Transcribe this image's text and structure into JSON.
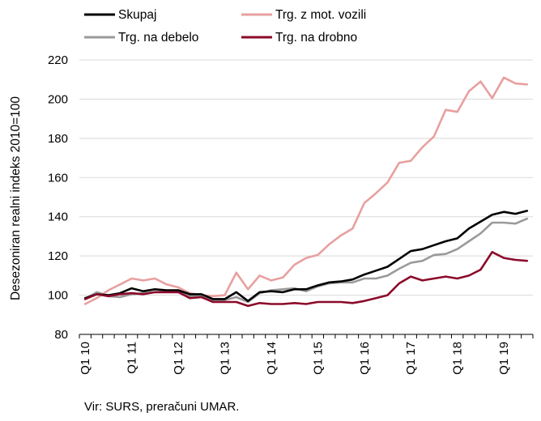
{
  "chart_data": {
    "type": "line",
    "ylabel": "Desezoniran realni indeks 2010=100",
    "source": "Vir: SURS, preračuni UMAR.",
    "ylim": [
      80,
      220
    ],
    "yticks": [
      80,
      100,
      120,
      140,
      160,
      180,
      200,
      220
    ],
    "xtick_labels": [
      "Q1 10",
      "Q1 11",
      "Q1 12",
      "Q1 13",
      "Q1 14",
      "Q1 15",
      "Q1 16",
      "Q1 17",
      "Q1 18",
      "Q1 19"
    ],
    "grid": "horizontal",
    "legend_position": "top",
    "series": [
      {
        "name": "Skupaj",
        "color": "#000000",
        "values": [
          98.5,
          100.5,
          100.0,
          101.0,
          103.5,
          102.0,
          103.0,
          102.5,
          102.5,
          100.5,
          100.5,
          98.0,
          98.0,
          101.5,
          97.0,
          101.5,
          102.0,
          101.5,
          103.0,
          103.0,
          105.0,
          106.5,
          107.0,
          108.0,
          110.5,
          112.5,
          114.5,
          118.5,
          122.5,
          123.5,
          125.5,
          127.5,
          129.0,
          134.0,
          137.5,
          141.0,
          142.5,
          141.5,
          143.0
        ]
      },
      {
        "name": "Trg. z mot. vozili",
        "color": "#e8a0a0",
        "values": [
          95.5,
          98.5,
          102.5,
          105.5,
          108.5,
          107.5,
          108.5,
          105.5,
          104.0,
          101.0,
          100.0,
          99.5,
          100.0,
          111.5,
          103.0,
          110.0,
          107.5,
          109.0,
          115.5,
          119.0,
          120.5,
          126.0,
          130.5,
          134.0,
          147.0,
          152.0,
          157.5,
          167.5,
          168.5,
          175.5,
          181.0,
          194.5,
          193.5,
          204.0,
          209.0,
          200.5,
          211.0,
          208.0,
          207.5
        ]
      },
      {
        "name": "Trg. na debelo",
        "color": "#9a9a9a",
        "values": [
          98.0,
          101.5,
          99.5,
          99.0,
          100.5,
          101.0,
          101.5,
          102.0,
          101.5,
          99.5,
          100.0,
          97.5,
          97.5,
          99.0,
          96.5,
          101.0,
          102.5,
          103.0,
          103.5,
          102.0,
          104.5,
          106.0,
          106.5,
          106.5,
          108.5,
          108.5,
          110.0,
          113.5,
          116.5,
          117.5,
          120.5,
          121.0,
          123.5,
          127.5,
          131.5,
          137.0,
          137.0,
          136.5,
          139.0
        ]
      },
      {
        "name": "Trg. na drobno",
        "color": "#8b0a2a",
        "values": [
          98.0,
          100.5,
          99.5,
          100.5,
          101.0,
          100.5,
          101.5,
          101.5,
          101.5,
          98.5,
          99.0,
          96.5,
          96.5,
          96.5,
          94.5,
          96.0,
          95.5,
          95.5,
          96.0,
          95.5,
          96.5,
          96.5,
          96.5,
          96.0,
          97.0,
          98.5,
          100.0,
          106.0,
          109.5,
          107.5,
          108.5,
          109.5,
          108.5,
          110.0,
          113.0,
          122.0,
          119.0,
          118.0,
          117.5
        ]
      }
    ]
  }
}
